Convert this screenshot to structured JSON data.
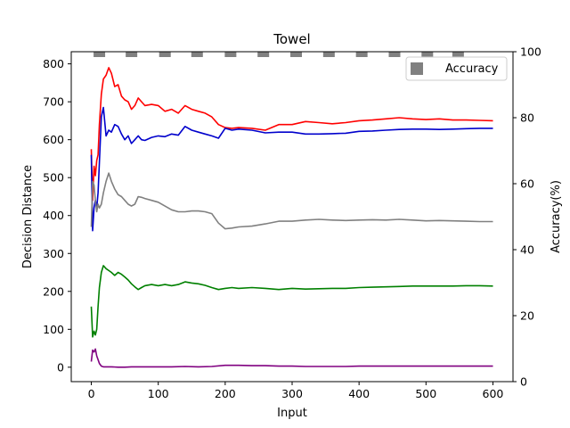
{
  "chart_data": {
    "type": "line",
    "title": "Towel",
    "xlabel": "Input",
    "ylabel": "Decision Distance",
    "y2label": "Accuracy(%)",
    "xlim": [
      -30,
      630
    ],
    "ylim": [
      -38,
      832
    ],
    "y2lim": [
      0,
      100
    ],
    "xticks": [
      0,
      100,
      200,
      300,
      400,
      500,
      600
    ],
    "yticks": [
      0,
      100,
      200,
      300,
      400,
      500,
      600,
      700,
      800
    ],
    "y2ticks": [
      0,
      20,
      40,
      60,
      80,
      100
    ],
    "legend": {
      "position": "top-right",
      "entries": [
        "Accuracy"
      ]
    },
    "grid": false,
    "accuracy_bars": {
      "name": "Accuracy",
      "color": "#808080",
      "x": [
        12,
        60,
        110,
        158,
        208,
        257,
        306,
        355,
        404,
        453,
        502,
        548
      ],
      "value": 100
    },
    "series": [
      {
        "color": "#ff0000",
        "x": [
          0,
          2,
          4,
          6,
          8,
          10,
          12,
          15,
          18,
          22,
          26,
          30,
          35,
          40,
          45,
          50,
          55,
          60,
          65,
          70,
          75,
          80,
          90,
          100,
          110,
          120,
          130,
          140,
          150,
          160,
          170,
          180,
          190,
          200,
          210,
          220,
          240,
          260,
          280,
          300,
          320,
          340,
          360,
          380,
          400,
          420,
          440,
          460,
          480,
          500,
          520,
          540,
          560,
          580,
          600
        ],
        "y": [
          575,
          440,
          530,
          505,
          545,
          560,
          640,
          720,
          760,
          770,
          790,
          775,
          740,
          745,
          715,
          705,
          700,
          680,
          690,
          710,
          700,
          690,
          693,
          690,
          675,
          680,
          670,
          690,
          680,
          675,
          670,
          660,
          640,
          632,
          630,
          632,
          630,
          625,
          640,
          640,
          648,
          645,
          642,
          645,
          650,
          652,
          655,
          658,
          655,
          653,
          655,
          652,
          652,
          651,
          650
        ]
      },
      {
        "color": "#0000cc",
        "x": [
          0,
          2,
          4,
          6,
          8,
          10,
          12,
          15,
          18,
          22,
          26,
          30,
          35,
          40,
          45,
          50,
          55,
          60,
          65,
          70,
          75,
          80,
          90,
          100,
          110,
          120,
          130,
          140,
          150,
          160,
          170,
          180,
          190,
          200,
          210,
          220,
          240,
          260,
          280,
          300,
          320,
          340,
          360,
          380,
          400,
          420,
          440,
          460,
          480,
          500,
          520,
          540,
          560,
          580,
          600
        ],
        "y": [
          560,
          360,
          420,
          440,
          420,
          460,
          540,
          660,
          685,
          610,
          625,
          620,
          640,
          635,
          615,
          600,
          610,
          590,
          600,
          610,
          600,
          598,
          606,
          610,
          608,
          615,
          612,
          635,
          625,
          620,
          615,
          610,
          604,
          630,
          625,
          628,
          625,
          618,
          620,
          620,
          615,
          615,
          616,
          617,
          622,
          623,
          625,
          627,
          628,
          628,
          627,
          628,
          629,
          630,
          630
        ]
      },
      {
        "color": "#808080",
        "x": [
          0,
          2,
          4,
          6,
          8,
          10,
          12,
          15,
          18,
          22,
          26,
          30,
          35,
          40,
          45,
          50,
          55,
          60,
          65,
          70,
          75,
          80,
          90,
          100,
          110,
          120,
          130,
          140,
          150,
          160,
          170,
          180,
          190,
          200,
          210,
          220,
          240,
          260,
          280,
          300,
          320,
          340,
          360,
          380,
          400,
          420,
          440,
          460,
          480,
          500,
          520,
          540,
          560,
          580,
          600
        ],
        "y": [
          370,
          490,
          480,
          440,
          410,
          430,
          420,
          430,
          460,
          490,
          512,
          490,
          470,
          455,
          450,
          440,
          430,
          425,
          430,
          450,
          448,
          445,
          440,
          435,
          425,
          415,
          410,
          410,
          412,
          412,
          410,
          405,
          380,
          365,
          367,
          370,
          372,
          378,
          385,
          385,
          388,
          390,
          388,
          387,
          388,
          389,
          388,
          390,
          388,
          386,
          387,
          386,
          385,
          384,
          384
        ]
      },
      {
        "color": "#008000",
        "x": [
          0,
          2,
          4,
          6,
          8,
          10,
          12,
          15,
          18,
          22,
          26,
          30,
          35,
          40,
          45,
          50,
          55,
          60,
          65,
          70,
          75,
          80,
          90,
          100,
          110,
          120,
          130,
          140,
          150,
          160,
          170,
          180,
          190,
          200,
          210,
          220,
          240,
          260,
          280,
          300,
          320,
          340,
          360,
          380,
          400,
          420,
          440,
          460,
          480,
          500,
          520,
          540,
          560,
          580,
          600
        ],
        "y": [
          160,
          80,
          95,
          85,
          100,
          160,
          210,
          250,
          268,
          260,
          255,
          250,
          242,
          250,
          245,
          238,
          230,
          220,
          212,
          205,
          210,
          215,
          218,
          215,
          218,
          215,
          218,
          225,
          222,
          220,
          216,
          210,
          205,
          208,
          210,
          208,
          210,
          208,
          205,
          208,
          206,
          207,
          208,
          208,
          210,
          211,
          212,
          213,
          214,
          214,
          214,
          214,
          215,
          215,
          214
        ]
      },
      {
        "color": "#800080",
        "x": [
          0,
          2,
          4,
          6,
          8,
          10,
          12,
          15,
          18,
          22,
          26,
          30,
          40,
          50,
          60,
          80,
          100,
          120,
          140,
          160,
          180,
          200,
          220,
          240,
          260,
          280,
          300,
          320,
          340,
          360,
          380,
          400,
          420,
          440,
          460,
          480,
          500,
          520,
          540,
          560,
          580,
          600
        ],
        "y": [
          15,
          45,
          40,
          48,
          30,
          20,
          10,
          3,
          1,
          1,
          1,
          1,
          0,
          0,
          1,
          1,
          1,
          1,
          2,
          1,
          2,
          5,
          5,
          4,
          4,
          3,
          3,
          2,
          2,
          2,
          2,
          3,
          3,
          3,
          3,
          3,
          3,
          3,
          3,
          3,
          3,
          3
        ]
      }
    ]
  }
}
